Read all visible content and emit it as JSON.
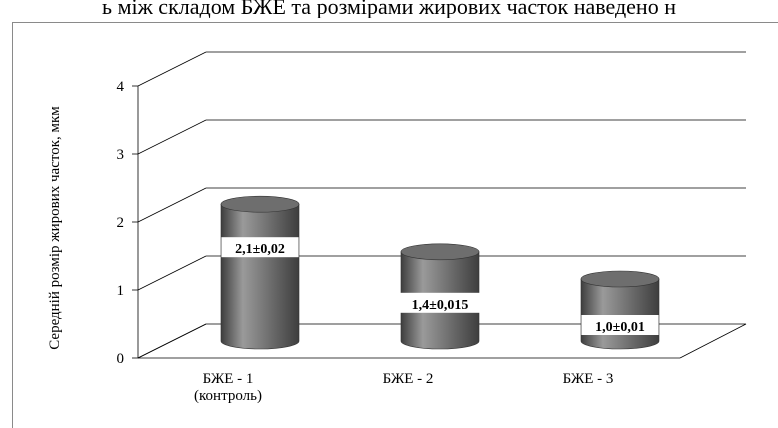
{
  "page": {
    "heading": "ь між складом БЖЕ та розмірами жирових часток наведено н"
  },
  "colors": {
    "bar_dark": "#3e3e3e",
    "bar_light": "#9a9a9a",
    "bar_top": "#6e6e6e",
    "grid": "#000000",
    "label_bg": "#ffffff"
  },
  "chart_data": {
    "type": "bar",
    "style": "3d-cylinder",
    "categories": [
      "БЖЕ - 1\n(контроль)",
      "БЖЕ - 2",
      "БЖЕ - 3"
    ],
    "values": [
      2.1,
      1.4,
      1.0
    ],
    "data_labels": [
      "2,1±0,02",
      "1,4±0,015",
      "1,0±0,01"
    ],
    "title": "",
    "xlabel": "",
    "ylabel": "Середній розмір жирових часток, мкм",
    "ylim": [
      0,
      4
    ],
    "yticks": [
      "0",
      "1",
      "2",
      "3",
      "4"
    ],
    "grid": true,
    "legend": "none"
  }
}
